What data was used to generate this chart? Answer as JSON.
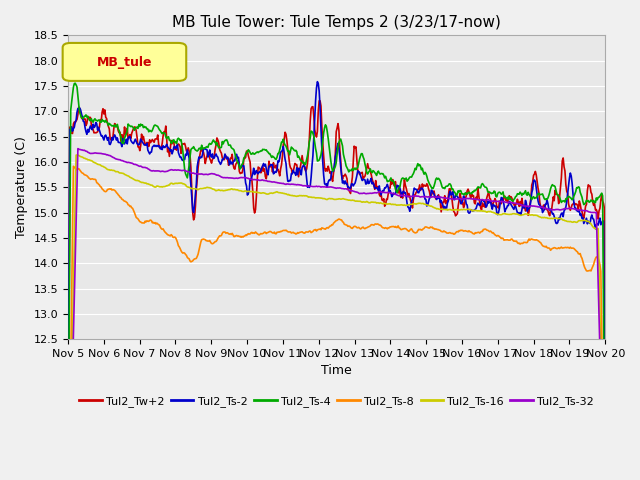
{
  "title": "MB Tule Tower: Tule Temps 2 (3/23/17-now)",
  "xlabel": "Time",
  "ylabel": "Temperature (C)",
  "ylim": [
    12.5,
    18.5
  ],
  "xlim": [
    0,
    15
  ],
  "xtick_labels": [
    "Nov 5",
    "Nov 6",
    "Nov 7",
    "Nov 8",
    "Nov 9",
    "Nov 10",
    "Nov 11",
    "Nov 12",
    "Nov 13",
    "Nov 14",
    "Nov 15",
    "Nov 16",
    "Nov 17",
    "Nov 18",
    "Nov 19",
    "Nov 20"
  ],
  "legend_label": "MB_tule",
  "series_labels": [
    "Tul2_Tw+2",
    "Tul2_Ts-2",
    "Tul2_Ts-4",
    "Tul2_Ts-8",
    "Tul2_Ts-16",
    "Tul2_Ts-32"
  ],
  "series_colors": [
    "#cc0000",
    "#0000cc",
    "#00aa00",
    "#ff8800",
    "#cccc00",
    "#9900cc"
  ],
  "bg_color": "#e8e8e8",
  "grid_color": "#ffffff",
  "title_fontsize": 11,
  "axis_fontsize": 9,
  "tick_fontsize": 8,
  "legend_box_color": "#ffff99",
  "legend_box_edge": "#aaa800"
}
